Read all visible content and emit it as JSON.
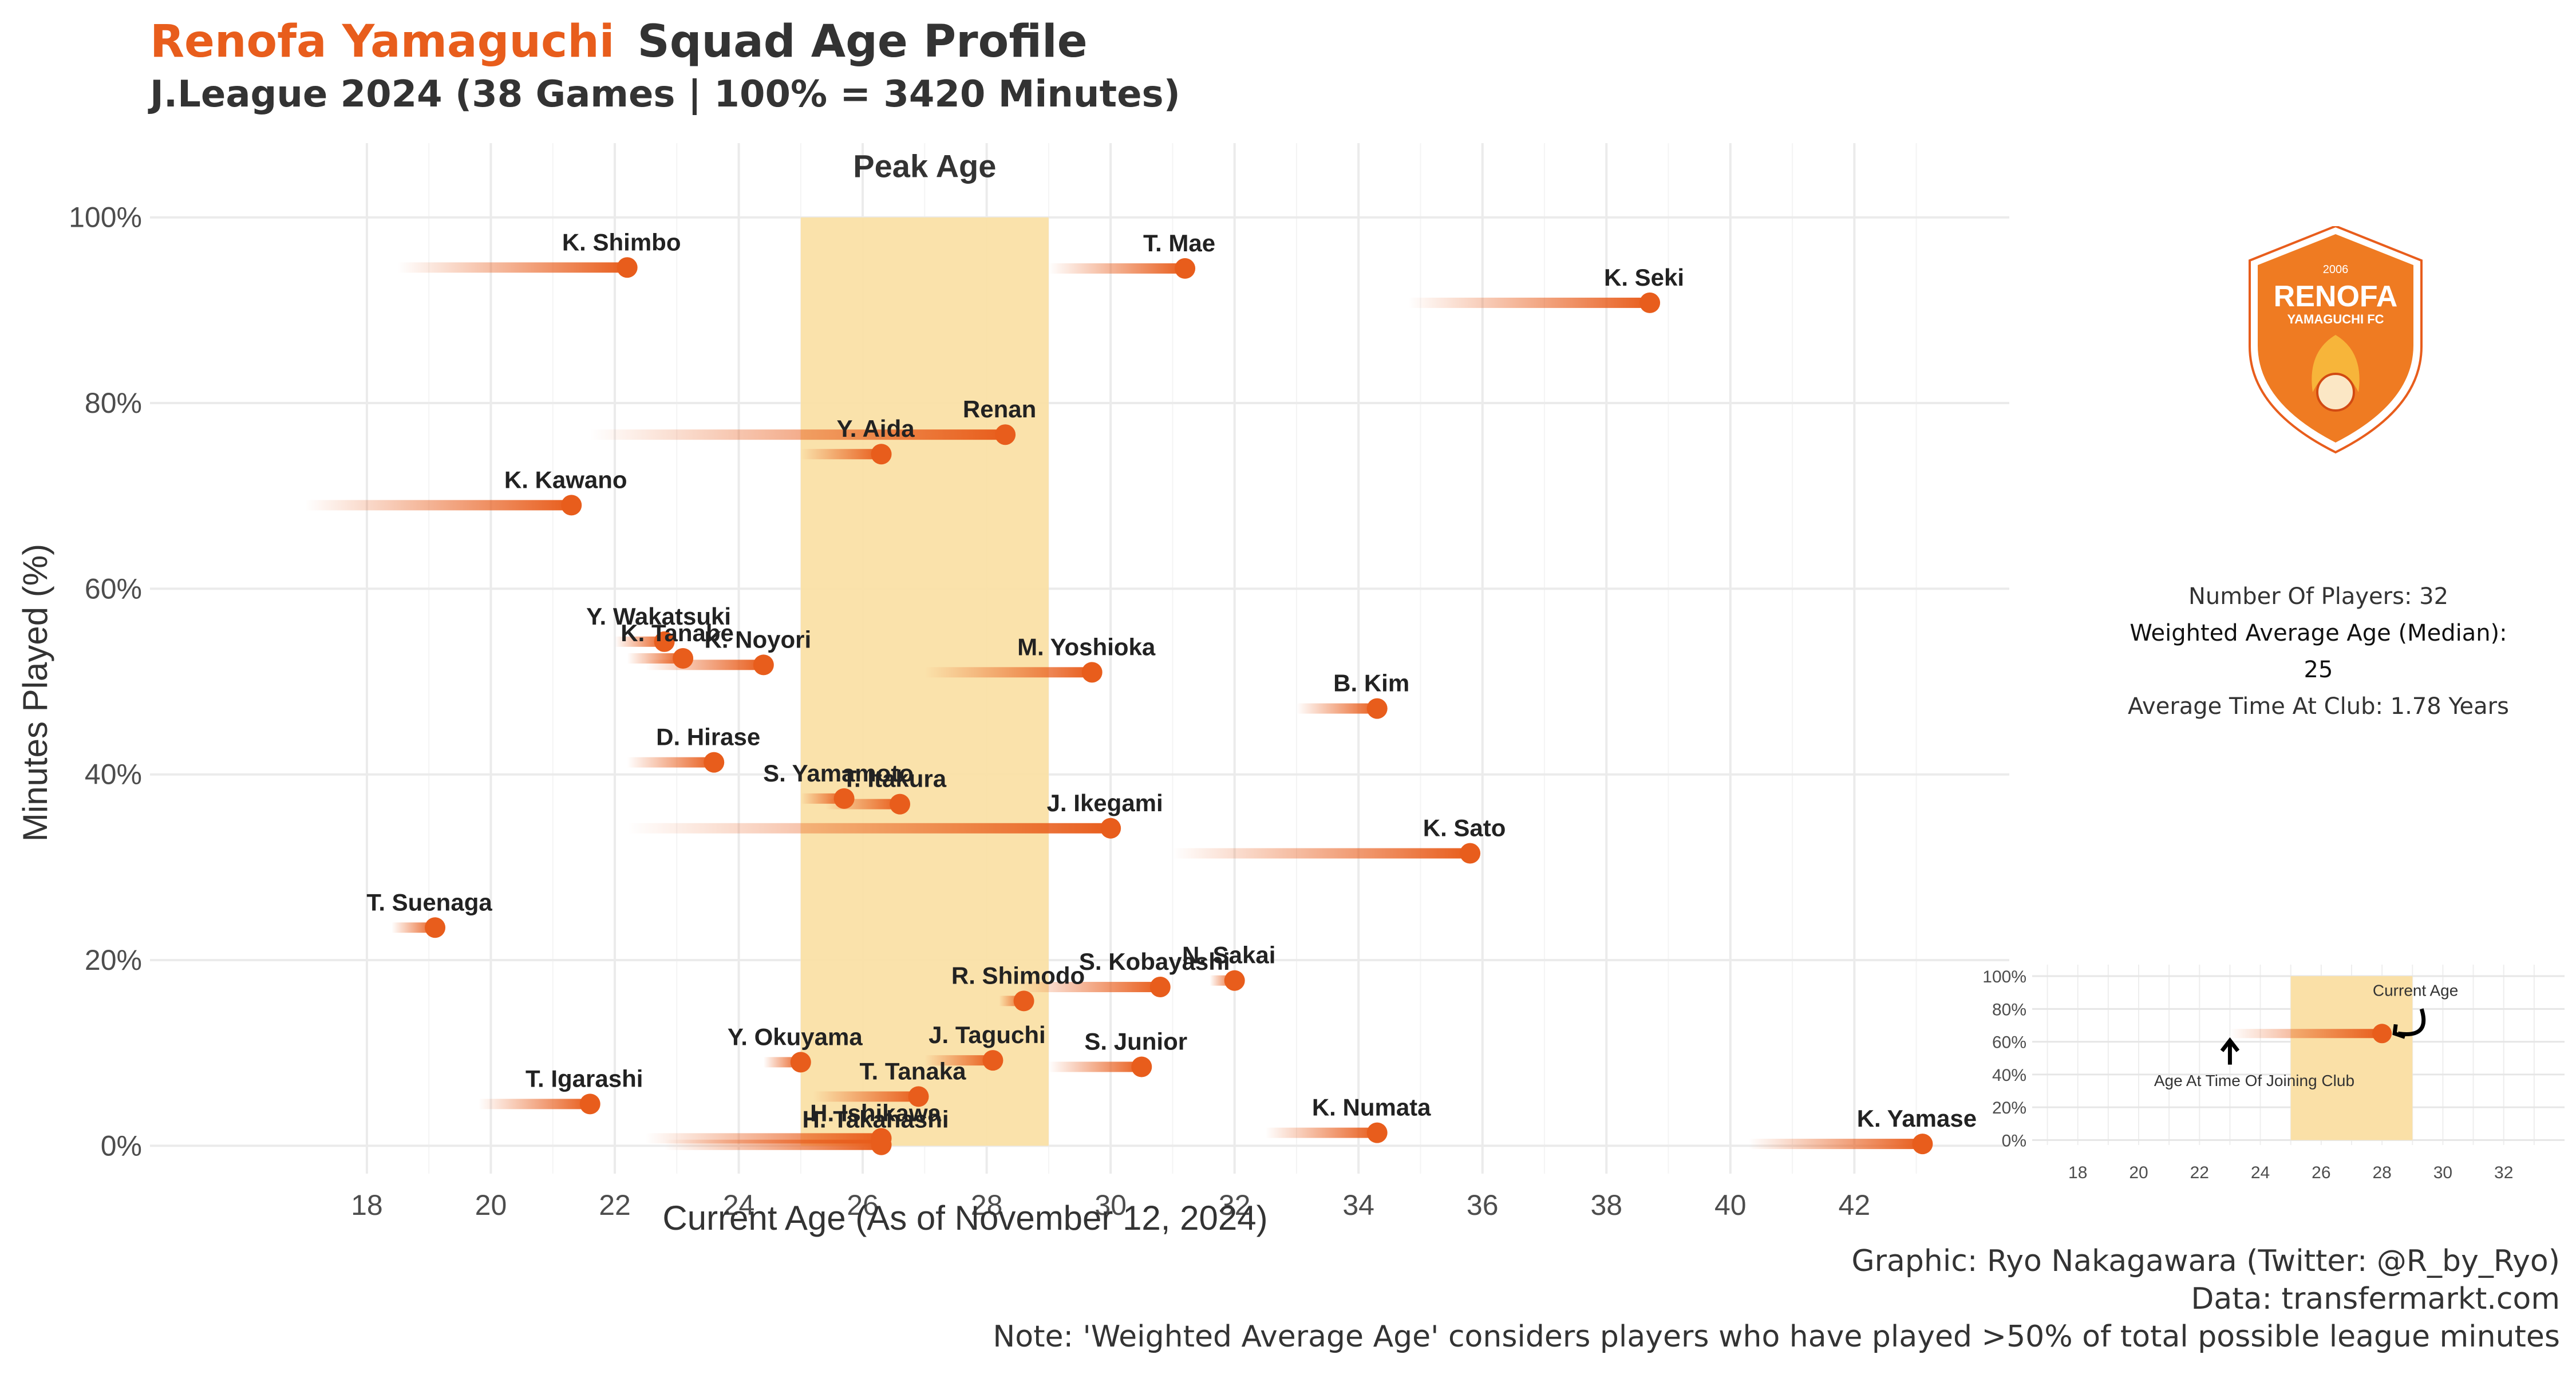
{
  "header": {
    "club_name": "Renofa Yamaguchi",
    "title": "Squad Age Profile",
    "subtitle": "J.League 2024 (38 Games | 100% = 3420 Minutes)"
  },
  "badge": {
    "year": "2006",
    "name": "RENOFA",
    "sub": "YAMAGUCHI FC"
  },
  "colors": {
    "accent": "#e85d1c",
    "peak_fill": "#fae0a7",
    "grid": "#ebebeb",
    "text": "#333333"
  },
  "chart_data": {
    "type": "scatter",
    "xlabel": "Current Age (As of November 12, 2024)",
    "ylabel": "Minutes Played (%)",
    "xlim": [
      14.5,
      44.5
    ],
    "ylim": [
      -3,
      108
    ],
    "xticks": [
      18,
      20,
      22,
      24,
      26,
      28,
      30,
      32,
      34,
      36,
      38,
      40,
      42
    ],
    "yticks": [
      0,
      20,
      40,
      60,
      80,
      100
    ],
    "ytick_labels": [
      "0%",
      "20%",
      "40%",
      "60%",
      "80%",
      "100%"
    ],
    "peak_age": {
      "label": "Peak Age",
      "from": 25,
      "to": 29
    },
    "players": [
      {
        "name": "K. Shimbo",
        "age": 22.2,
        "joined_age": 18.5,
        "minutes_pct": 94.6
      },
      {
        "name": "T. Mae",
        "age": 31.2,
        "joined_age": 29.0,
        "minutes_pct": 94.5
      },
      {
        "name": "K. Seki",
        "age": 38.7,
        "joined_age": 34.8,
        "minutes_pct": 90.8
      },
      {
        "name": "Renan",
        "age": 28.3,
        "joined_age": 21.6,
        "minutes_pct": 76.6
      },
      {
        "name": "Y. Aida",
        "age": 26.3,
        "joined_age": 25.0,
        "minutes_pct": 74.5
      },
      {
        "name": "K. Kawano",
        "age": 21.3,
        "joined_age": 17.0,
        "minutes_pct": 69.0
      },
      {
        "name": "Y. Wakatsuki",
        "age": 22.8,
        "joined_age": 22.0,
        "minutes_pct": 54.3
      },
      {
        "name": "K. Tanabe",
        "age": 23.1,
        "joined_age": 22.2,
        "minutes_pct": 52.5
      },
      {
        "name": "K. Noyori",
        "age": 24.4,
        "joined_age": 22.5,
        "minutes_pct": 51.8
      },
      {
        "name": "M. Yoshioka",
        "age": 29.7,
        "joined_age": 27.0,
        "minutes_pct": 51.0
      },
      {
        "name": "B. Kim",
        "age": 34.3,
        "joined_age": 33.0,
        "minutes_pct": 47.1
      },
      {
        "name": "D. Hirase",
        "age": 23.6,
        "joined_age": 22.2,
        "minutes_pct": 41.3
      },
      {
        "name": "S. Yamamoto",
        "age": 25.7,
        "joined_age": 25.0,
        "minutes_pct": 37.4
      },
      {
        "name": "T. Itakura",
        "age": 26.6,
        "joined_age": 25.4,
        "minutes_pct": 36.8
      },
      {
        "name": "J. Ikegami",
        "age": 30.0,
        "joined_age": 22.2,
        "minutes_pct": 34.2
      },
      {
        "name": "K. Sato",
        "age": 35.8,
        "joined_age": 31.0,
        "minutes_pct": 31.5
      },
      {
        "name": "T. Suenaga",
        "age": 19.1,
        "joined_age": 18.4,
        "minutes_pct": 23.5
      },
      {
        "name": "N. Sakai",
        "age": 32.0,
        "joined_age": 31.6,
        "minutes_pct": 17.8
      },
      {
        "name": "S. Kobayashi",
        "age": 30.8,
        "joined_age": 28.5,
        "minutes_pct": 17.1
      },
      {
        "name": "R. Shimodo",
        "age": 28.6,
        "joined_age": 28.2,
        "minutes_pct": 15.6
      },
      {
        "name": "J. Taguchi",
        "age": 28.1,
        "joined_age": 27.0,
        "minutes_pct": 9.2
      },
      {
        "name": "Y. Okuyama",
        "age": 25.0,
        "joined_age": 24.4,
        "minutes_pct": 9.0
      },
      {
        "name": "S. Junior",
        "age": 30.5,
        "joined_age": 29.0,
        "minutes_pct": 8.5
      },
      {
        "name": "T. Tanaka",
        "age": 26.9,
        "joined_age": 25.2,
        "minutes_pct": 5.3
      },
      {
        "name": "T. Igarashi",
        "age": 21.6,
        "joined_age": 19.8,
        "minutes_pct": 4.5
      },
      {
        "name": "K. Numata",
        "age": 34.3,
        "joined_age": 32.5,
        "minutes_pct": 1.4
      },
      {
        "name": "H. Ishikawa",
        "age": 26.3,
        "joined_age": 22.5,
        "minutes_pct": 0.8
      },
      {
        "name": "H. Takahashi",
        "age": 26.3,
        "joined_age": 22.8,
        "minutes_pct": 0.1
      },
      {
        "name": "K. Yamase",
        "age": 43.1,
        "joined_age": 40.3,
        "minutes_pct": 0.2
      }
    ]
  },
  "summary": {
    "players": "Number Of Players: 32",
    "weighted_age": "Weighted Average Age (Median): 25",
    "time_at_club": "Average Time At Club: 1.78 Years"
  },
  "legend_chart": {
    "xticks": [
      18,
      20,
      22,
      24,
      26,
      28,
      30,
      32
    ],
    "yticks": [
      0,
      20,
      40,
      60,
      80,
      100
    ],
    "ytick_labels": [
      "0%",
      "20%",
      "40%",
      "60%",
      "80%",
      "100%"
    ],
    "example": {
      "joined_age": 23,
      "age": 28,
      "minutes_pct": 65
    },
    "current_age_label": "Current Age",
    "joined_label": "Age At Time Of Joining Club"
  },
  "credits": {
    "graphic": "Graphic: Ryo Nakagawara (Twitter: @R_by_Ryo)",
    "data": "Data: transfermarkt.com",
    "note": "Note: 'Weighted Average Age' considers players who have played >50% of total possible league minutes"
  }
}
